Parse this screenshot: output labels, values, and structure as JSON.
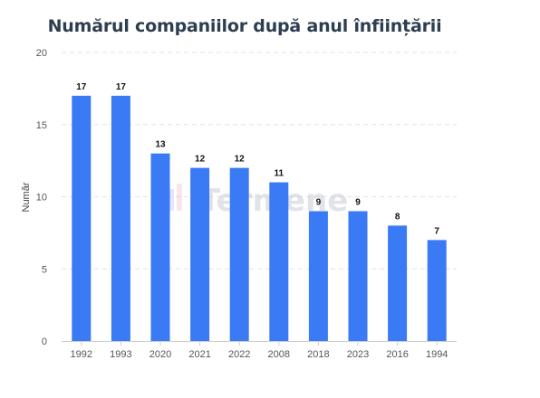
{
  "chart_data": {
    "type": "bar",
    "title": "Numărul companiilor după anul înființării",
    "ylabel": "Număr",
    "xlabel": "",
    "categories": [
      "1992",
      "1993",
      "2020",
      "2021",
      "2022",
      "2008",
      "2018",
      "2023",
      "2016",
      "1994"
    ],
    "values": [
      17,
      17,
      13,
      12,
      12,
      11,
      9,
      9,
      8,
      7
    ],
    "ylim": [
      0,
      20
    ],
    "yticks": [
      0,
      5,
      10,
      15,
      20
    ],
    "grid": true,
    "legend": "none",
    "bar_color": "#3b7af5",
    "data_labels": true
  },
  "watermark": {
    "text": "Termene",
    "icon": "termene-logo-icon"
  }
}
